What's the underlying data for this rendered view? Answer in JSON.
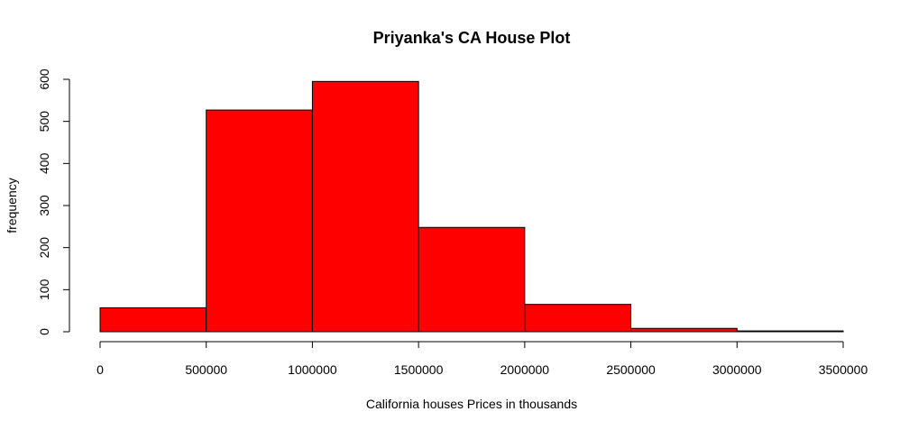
{
  "chart_data": {
    "type": "bar",
    "subtype": "histogram",
    "title": "Priyanka's CA House Plot",
    "xlabel": "California houses Prices in thousands",
    "ylabel": "frequency",
    "bins": [
      {
        "start": 0,
        "end": 500000,
        "count": 57
      },
      {
        "start": 500000,
        "end": 1000000,
        "count": 527
      },
      {
        "start": 1000000,
        "end": 1500000,
        "count": 595
      },
      {
        "start": 1500000,
        "end": 2000000,
        "count": 248
      },
      {
        "start": 2000000,
        "end": 2500000,
        "count": 65
      },
      {
        "start": 2500000,
        "end": 3000000,
        "count": 8
      },
      {
        "start": 3000000,
        "end": 3500000,
        "count": 2
      }
    ],
    "xlim": [
      0,
      3500000
    ],
    "ylim": [
      0,
      600
    ],
    "x_ticks": [
      "0",
      "500000",
      "1000000",
      "1500000",
      "2000000",
      "2500000",
      "3000000",
      "3500000"
    ],
    "y_ticks": [
      "0",
      "100",
      "200",
      "300",
      "400",
      "500",
      "600"
    ],
    "bar_color": "#ff0000",
    "bar_border_color": "#000000",
    "grid": false,
    "legend": "none"
  }
}
